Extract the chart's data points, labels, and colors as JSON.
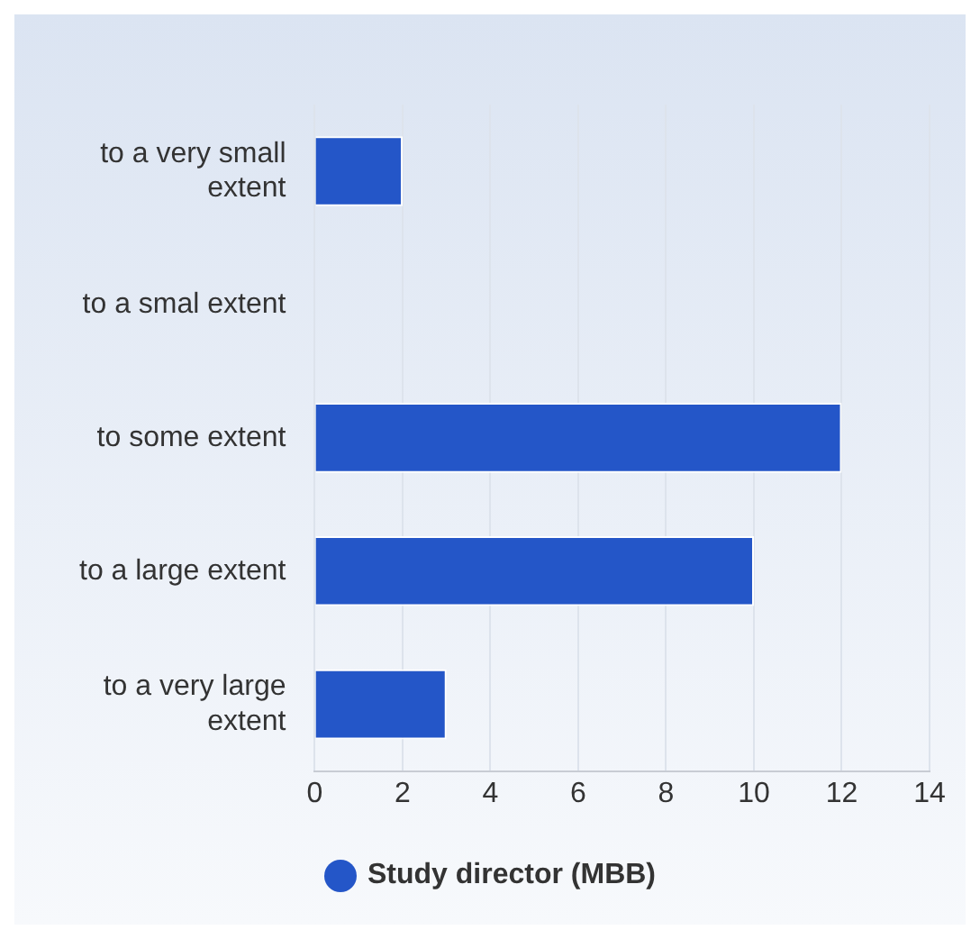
{
  "chart_data": {
    "type": "bar",
    "orientation": "horizontal",
    "categories": [
      "to a very small extent",
      "to a smal extent",
      "to some extent",
      "to a large extent",
      "to a very large extent"
    ],
    "series": [
      {
        "name": "Study director (MBB)",
        "color": "#2456c8",
        "values": [
          2,
          0,
          12,
          10,
          3
        ]
      }
    ],
    "xlim": [
      0,
      14
    ],
    "xticks": [
      0,
      2,
      4,
      6,
      8,
      10,
      12,
      14
    ],
    "grid": "x",
    "legend": "bottom"
  }
}
